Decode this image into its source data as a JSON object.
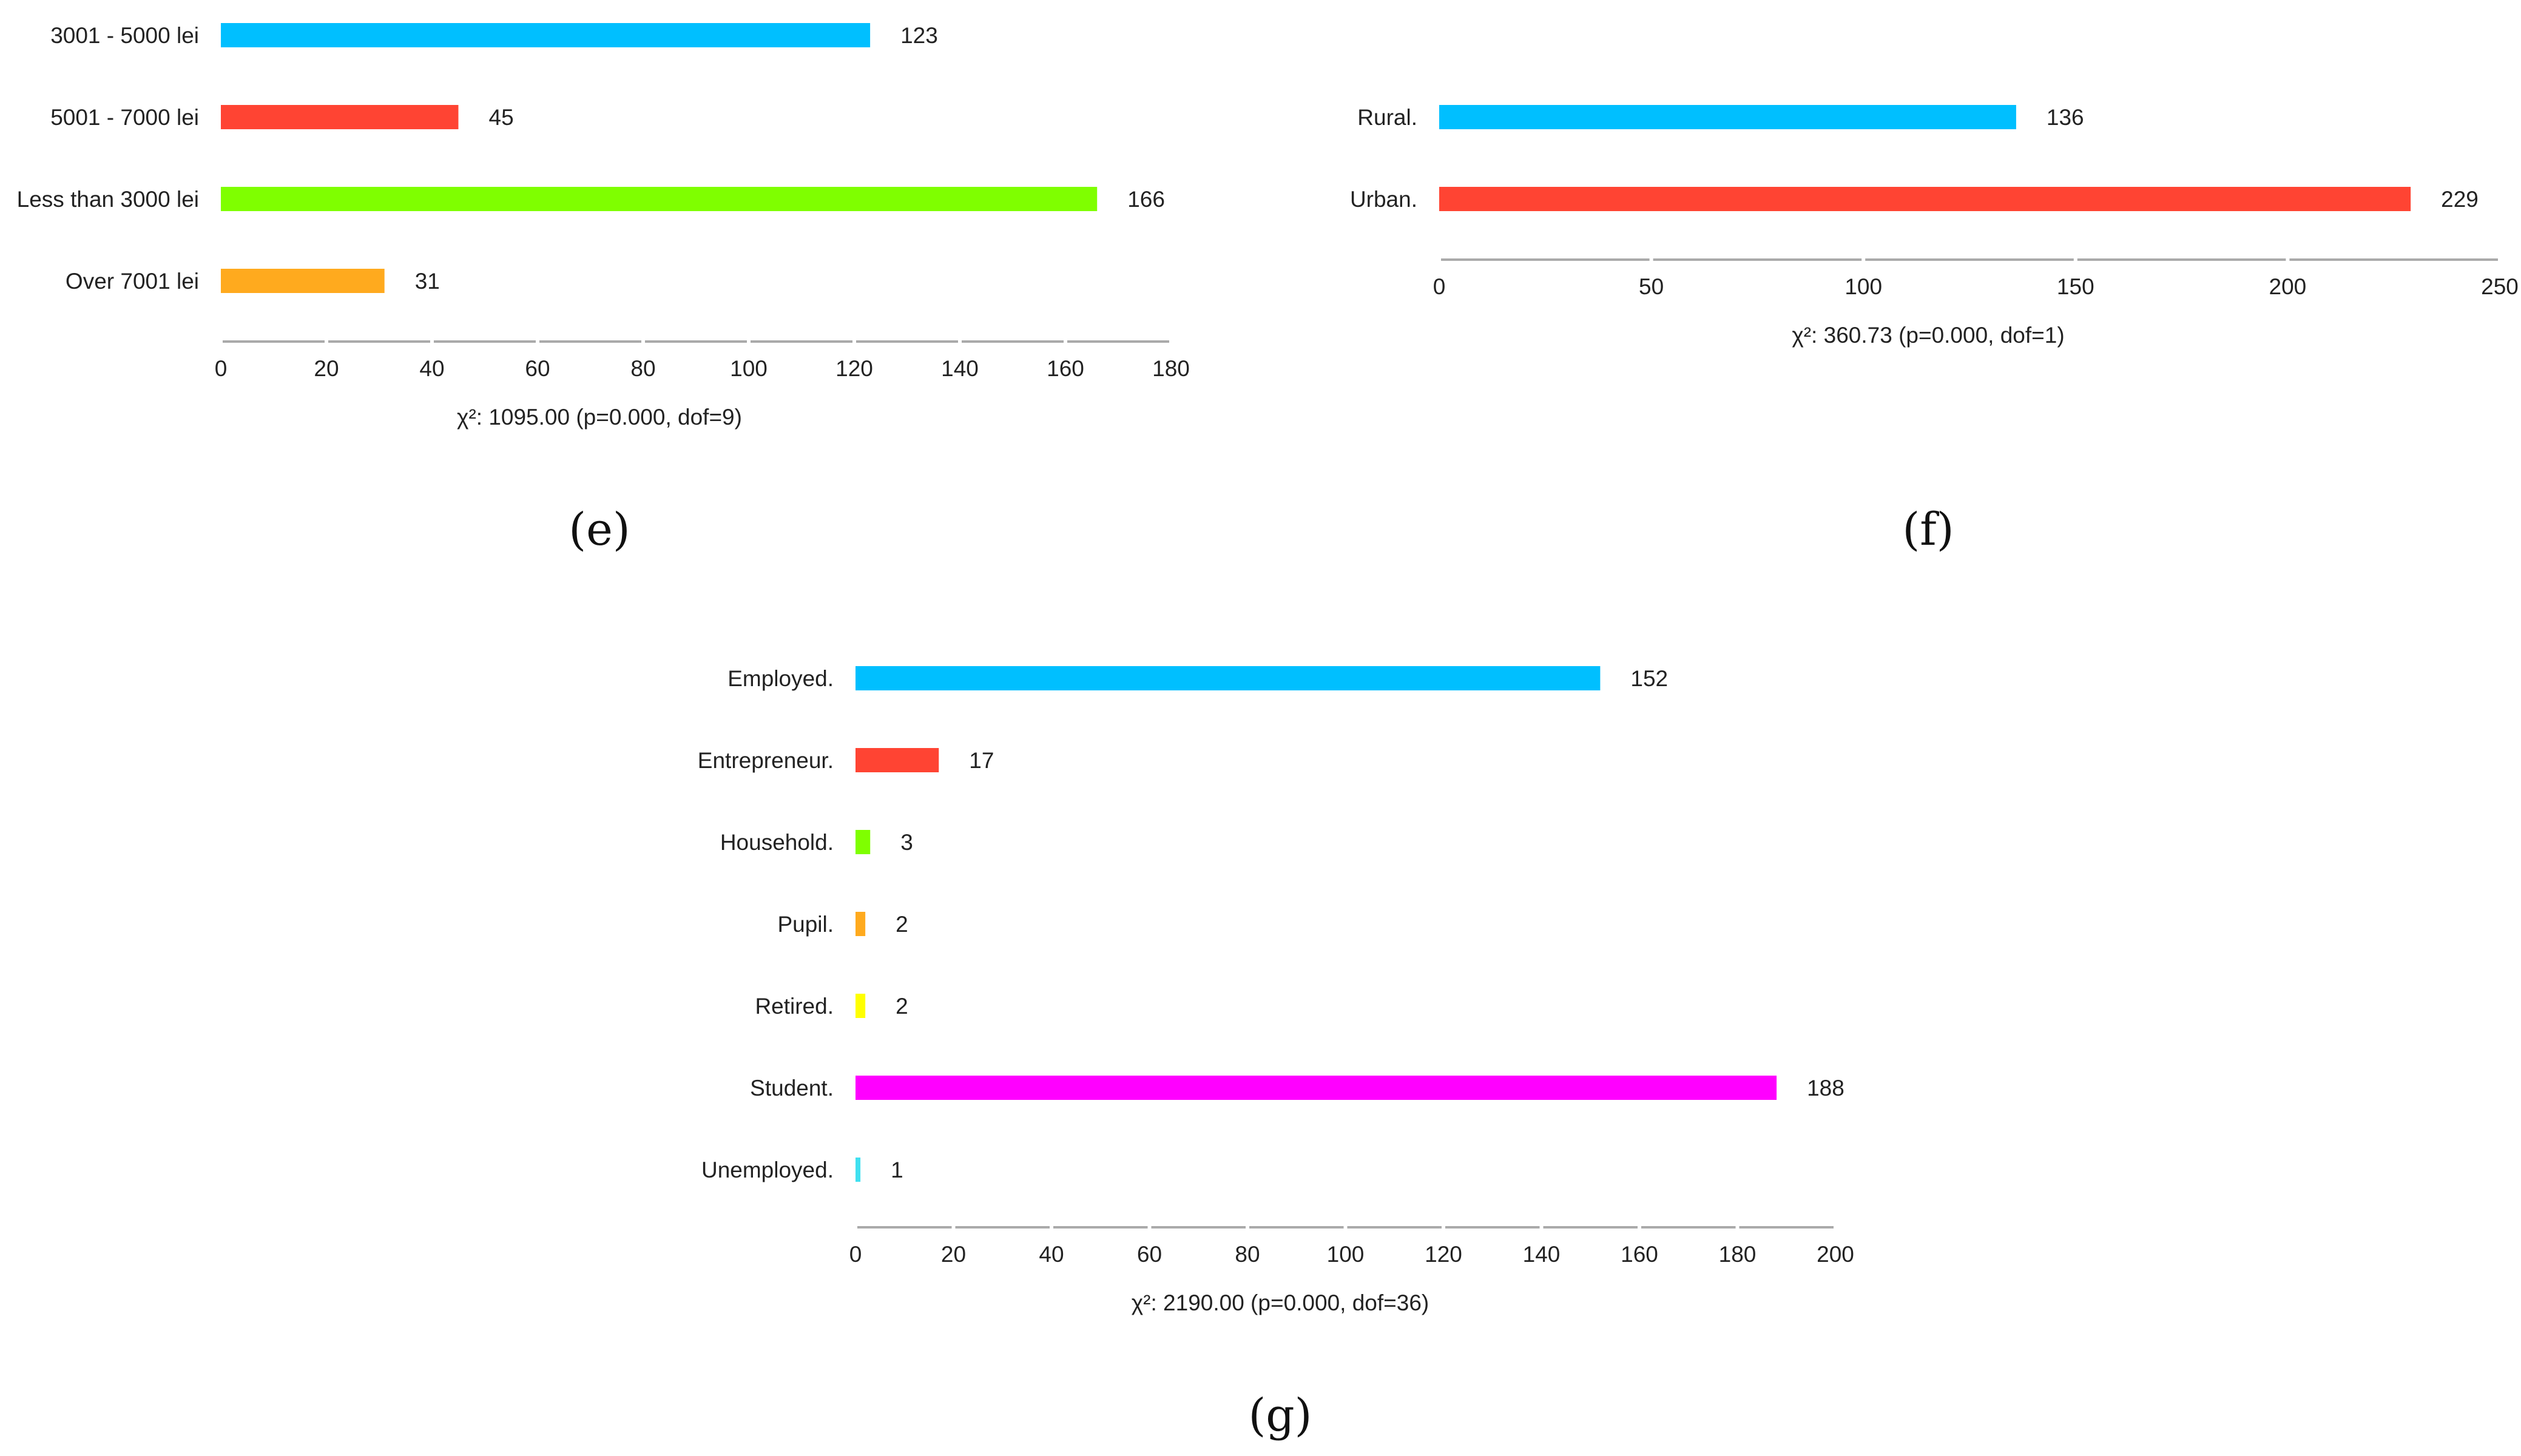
{
  "chart_data": [
    {
      "panel": "(e)",
      "type": "bar",
      "orientation": "horizontal",
      "categories": [
        "3001 - 5000 lei",
        "5001 - 7000 lei",
        "Less than 3000 lei",
        "Over 7001 lei"
      ],
      "values": [
        123,
        45,
        166,
        31
      ],
      "value_labels": [
        "123",
        "45",
        "166",
        "31"
      ],
      "colors": [
        "#00BFFF",
        "#FF4433",
        "#7FFF00",
        "#FFAA1E"
      ],
      "xlim": [
        0,
        180
      ],
      "ticks": [
        0,
        20,
        40,
        60,
        80,
        100,
        120,
        140,
        160,
        180
      ],
      "stat": "χ²: 1095.00 (p=0.000, dof=9)",
      "grid": false
    },
    {
      "panel": "(f)",
      "type": "bar",
      "orientation": "horizontal",
      "categories": [
        "Rural.",
        "Urban."
      ],
      "values": [
        136,
        229
      ],
      "value_labels": [
        "136",
        "229"
      ],
      "colors": [
        "#00BFFF",
        "#FF4433"
      ],
      "xlim": [
        0,
        250
      ],
      "ticks": [
        0,
        50,
        100,
        150,
        200,
        250
      ],
      "stat": "χ²: 360.73 (p=0.000, dof=1)",
      "grid": false
    },
    {
      "panel": "(g)",
      "type": "bar",
      "orientation": "horizontal",
      "categories": [
        "Employed.",
        "Entrepreneur.",
        "Household.",
        "Pupil.",
        "Retired.",
        "Student.",
        "Unemployed."
      ],
      "values": [
        152,
        17,
        3,
        2,
        2,
        188,
        1
      ],
      "value_labels": [
        "152",
        "17",
        "3",
        "2",
        "2",
        "188",
        "1"
      ],
      "colors": [
        "#00BFFF",
        "#FF4433",
        "#7FFF00",
        "#FFAA1E",
        "#FFFF00",
        "#FF00FF",
        "#40E0F0"
      ],
      "xlim": [
        0,
        200
      ],
      "ticks": [
        0,
        20,
        40,
        60,
        80,
        100,
        120,
        140,
        160,
        180,
        200
      ],
      "stat": "χ²: 2190.00 (p=0.000, dof=36)",
      "grid": false
    }
  ],
  "panel_labels": {
    "e": "(e)",
    "f": "(f)",
    "g": "(g)"
  }
}
